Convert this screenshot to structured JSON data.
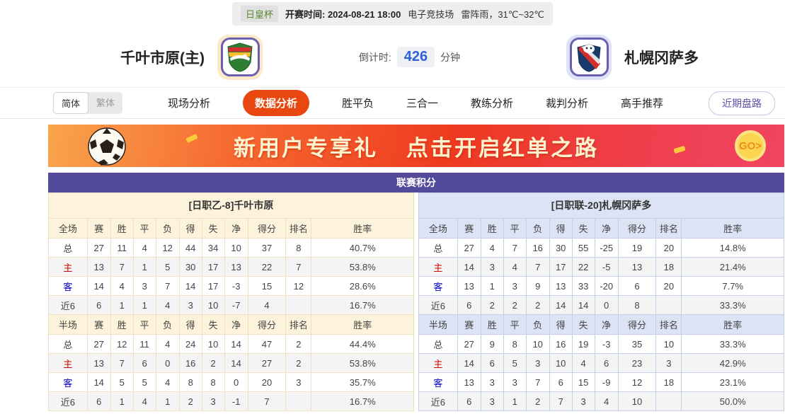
{
  "top_bar": {
    "league_tag": "日皇杯",
    "kickoff_label": "开赛时间:",
    "kickoff_time": "2024-08-21 18:00",
    "venue": "电子竞技场",
    "weather": "雷阵雨，31℃~32℃"
  },
  "header": {
    "home_team": "千叶市原(主)",
    "away_team": "札幌冈萨多",
    "countdown_label": "倒计时:",
    "countdown_value": "426",
    "countdown_unit": "分钟"
  },
  "nav": {
    "lang_simplified": "简体",
    "lang_traditional": "繁体",
    "tabs": [
      {
        "label": "现场分析",
        "active": false
      },
      {
        "label": "数据分析",
        "active": true
      },
      {
        "label": "胜平负",
        "active": false
      },
      {
        "label": "三合一",
        "active": false
      },
      {
        "label": "教练分析",
        "active": false
      },
      {
        "label": "裁判分析",
        "active": false
      },
      {
        "label": "高手推荐",
        "active": false
      }
    ],
    "trends_button": "近期盘路"
  },
  "banner": {
    "text_left": "新用户专享礼",
    "text_right": "点击开启红单之路",
    "go_label": "GO>"
  },
  "standings": {
    "title": "联赛积分",
    "home": {
      "team_header": "[日职乙-8]千叶市原",
      "full_header": [
        "全场",
        "赛",
        "胜",
        "平",
        "负",
        "得",
        "失",
        "净",
        "得分",
        "排名",
        "胜率"
      ],
      "full_rows": [
        [
          "总",
          "27",
          "11",
          "4",
          "12",
          "44",
          "34",
          "10",
          "37",
          "8",
          "40.7%"
        ],
        [
          "主",
          "13",
          "7",
          "1",
          "5",
          "30",
          "17",
          "13",
          "22",
          "7",
          "53.8%"
        ],
        [
          "客",
          "14",
          "4",
          "3",
          "7",
          "14",
          "17",
          "-3",
          "15",
          "12",
          "28.6%"
        ],
        [
          "近6",
          "6",
          "1",
          "1",
          "4",
          "3",
          "10",
          "-7",
          "4",
          "",
          "16.7%"
        ]
      ],
      "half_header": [
        "半场",
        "赛",
        "胜",
        "平",
        "负",
        "得",
        "失",
        "净",
        "得分",
        "排名",
        "胜率"
      ],
      "half_rows": [
        [
          "总",
          "27",
          "12",
          "11",
          "4",
          "24",
          "10",
          "14",
          "47",
          "2",
          "44.4%"
        ],
        [
          "主",
          "13",
          "7",
          "6",
          "0",
          "16",
          "2",
          "14",
          "27",
          "2",
          "53.8%"
        ],
        [
          "客",
          "14",
          "5",
          "5",
          "4",
          "8",
          "8",
          "0",
          "20",
          "3",
          "35.7%"
        ],
        [
          "近6",
          "6",
          "1",
          "4",
          "1",
          "2",
          "3",
          "-1",
          "7",
          "",
          "16.7%"
        ]
      ]
    },
    "away": {
      "team_header": "[日职联-20]札幌冈萨多",
      "full_header": [
        "全场",
        "赛",
        "胜",
        "平",
        "负",
        "得",
        "失",
        "净",
        "得分",
        "排名",
        "胜率"
      ],
      "full_rows": [
        [
          "总",
          "27",
          "4",
          "7",
          "16",
          "30",
          "55",
          "-25",
          "19",
          "20",
          "14.8%"
        ],
        [
          "主",
          "14",
          "3",
          "4",
          "7",
          "17",
          "22",
          "-5",
          "13",
          "18",
          "21.4%"
        ],
        [
          "客",
          "13",
          "1",
          "3",
          "9",
          "13",
          "33",
          "-20",
          "6",
          "20",
          "7.7%"
        ],
        [
          "近6",
          "6",
          "2",
          "2",
          "2",
          "14",
          "14",
          "0",
          "8",
          "",
          "33.3%"
        ]
      ],
      "half_header": [
        "半场",
        "赛",
        "胜",
        "平",
        "负",
        "得",
        "失",
        "净",
        "得分",
        "排名",
        "胜率"
      ],
      "half_rows": [
        [
          "总",
          "27",
          "9",
          "8",
          "10",
          "16",
          "19",
          "-3",
          "35",
          "10",
          "33.3%"
        ],
        [
          "主",
          "14",
          "6",
          "5",
          "3",
          "10",
          "4",
          "6",
          "23",
          "3",
          "42.9%"
        ],
        [
          "客",
          "13",
          "3",
          "3",
          "7",
          "6",
          "15",
          "-9",
          "12",
          "18",
          "23.1%"
        ],
        [
          "近6",
          "6",
          "3",
          "1",
          "2",
          "7",
          "3",
          "4",
          "10",
          "",
          "50.0%"
        ]
      ]
    }
  },
  "icons": {
    "home_logo": "green-shield-crest",
    "away_logo": "red-blue-shield-crest",
    "banner_ball": "soccer-ball",
    "go_coin": "gold-coin"
  },
  "colors": {
    "accent_tab": "#e8470f",
    "title_bar": "#534a9b",
    "home_panel": "#fdf3dc",
    "away_panel": "#dce3f4",
    "countdown_value": "#2c62d6",
    "home_row_label": "#cc0000",
    "away_row_label": "#0000cd",
    "league_tag_text": "#5c8a33"
  }
}
